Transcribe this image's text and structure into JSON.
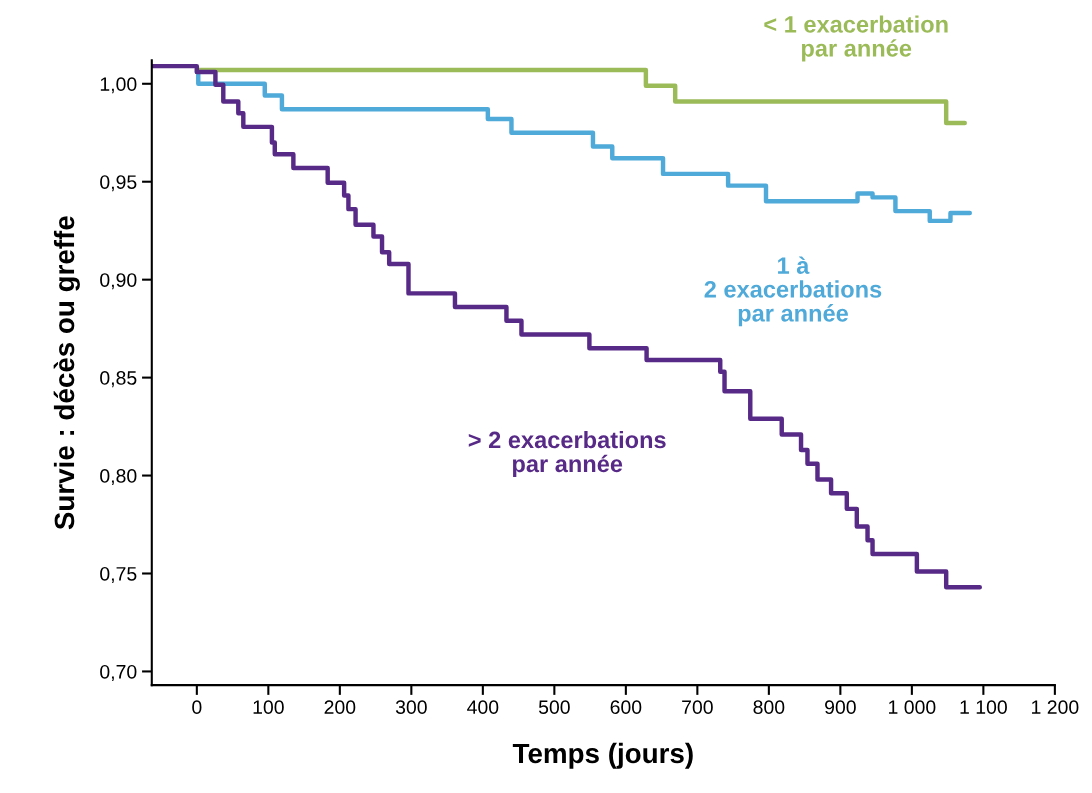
{
  "chart_data": {
    "type": "step",
    "xlabel": "Temps (jours)",
    "ylabel": "Survie : décès ou greffe",
    "xlim": [
      -63,
      1200
    ],
    "ylim": [
      0.693,
      1.012
    ],
    "xticks": [
      0,
      100,
      200,
      300,
      400,
      500,
      600,
      700,
      800,
      900,
      {
        "value": 1000,
        "label": "1 000"
      },
      {
        "value": 1100,
        "label": "1 100"
      },
      {
        "value": 1200,
        "label": "1 200"
      }
    ],
    "yticks": [
      {
        "value": 0.7,
        "label": "0,70"
      },
      {
        "value": 0.75,
        "label": "0,75"
      },
      {
        "value": 0.8,
        "label": "0,80"
      },
      {
        "value": 0.85,
        "label": "0,85"
      },
      {
        "value": 0.9,
        "label": "0,90"
      },
      {
        "value": 0.95,
        "label": "0,95"
      },
      {
        "value": 1.0,
        "label": "1,00"
      }
    ],
    "grid": false,
    "legend": false,
    "marker": "none",
    "line_style": "solid",
    "series": [
      {
        "name": "< 1 exacerbation\npar année",
        "color": "#9bbb59",
        "x": [
          0,
          628,
          669,
          1048,
          1074
        ],
        "values": [
          1.007,
          0.999,
          0.991,
          0.98,
          0.98
        ]
      },
      {
        "name": "1 à\n2 exacerbations\npar année",
        "color": "#4fa9d9",
        "x": [
          0,
          2,
          95,
          119,
          407,
          440,
          554,
          581,
          652,
          743,
          796,
          924,
          945,
          977,
          1025,
          1054,
          1081
        ],
        "values": [
          1.006,
          1.0,
          0.994,
          0.987,
          0.982,
          0.975,
          0.968,
          0.962,
          0.954,
          0.948,
          0.94,
          0.944,
          0.942,
          0.935,
          0.93,
          0.934,
          0.934
        ]
      },
      {
        "name": "> 2 exacerbations\npar année",
        "color": "#582a87",
        "x": [
          -63,
          0,
          26,
          37,
          58,
          65,
          105,
          109,
          135,
          183,
          206,
          212,
          222,
          247,
          259,
          269,
          296,
          361,
          433,
          454,
          549,
          629,
          732,
          738,
          774,
          818,
          845,
          854,
          868,
          887,
          909,
          923,
          938,
          945,
          1007,
          1048,
          1095
        ],
        "values": [
          1.009,
          1.006,
          0.9995,
          0.991,
          0.985,
          0.978,
          0.97,
          0.964,
          0.957,
          0.9495,
          0.943,
          0.936,
          0.928,
          0.922,
          0.914,
          0.908,
          0.893,
          0.886,
          0.879,
          0.872,
          0.865,
          0.859,
          0.853,
          0.843,
          0.829,
          0.821,
          0.813,
          0.806,
          0.798,
          0.791,
          0.783,
          0.774,
          0.767,
          0.76,
          0.751,
          0.743,
          0.743
        ]
      }
    ]
  }
}
